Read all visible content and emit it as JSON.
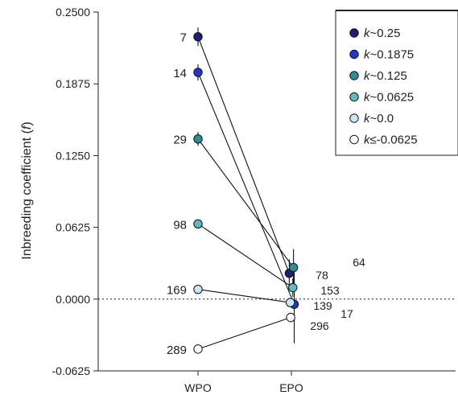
{
  "chart_data": {
    "type": "scatter",
    "ylabel_prefix": "Inbreeding coefficient (",
    "ylabel_var": "f",
    "ylabel_suffix": ")",
    "categories": [
      "WPO",
      "EPO"
    ],
    "ylim": [
      -0.0625,
      0.25
    ],
    "yticks": [
      "0.2500",
      "0.1875",
      "0.1250",
      "0.0625",
      "0.0000",
      "-0.0625"
    ],
    "reference_line": 0,
    "legend_position": "top-right",
    "series": [
      {
        "legend_var": "k",
        "legend_rel": "~",
        "legend_val": "0.25",
        "color": "#1a1f7a",
        "wpo": 0.2285,
        "wpo_err": 0.008,
        "wpo_n": "7",
        "epo": 0.0225,
        "epo_err": 0.012,
        "epo_n": "64",
        "epo_offset": -0.006
      },
      {
        "legend_var": "k",
        "legend_rel": "~",
        "legend_val": "0.1875",
        "color": "#1f36d6",
        "wpo": 0.1975,
        "wpo_err": 0.007,
        "wpo_n": "14",
        "epo": -0.0045,
        "epo_err": 0.034,
        "epo_n": "17",
        "epo_offset": 0.008
      },
      {
        "legend_var": "k",
        "legend_rel": "~",
        "legend_val": "0.125",
        "color": "#2a8f95",
        "wpo": 0.1395,
        "wpo_err": 0.006,
        "wpo_n": "29",
        "epo": 0.0275,
        "epo_err": 0.016,
        "epo_n": "78",
        "epo_offset": 0.006
      },
      {
        "legend_var": "k",
        "legend_rel": "~",
        "legend_val": "0.0625",
        "color": "#5cbcc2",
        "wpo": 0.0655,
        "wpo_err": 0.003,
        "wpo_n": "98",
        "epo": 0.01,
        "epo_err": 0.008,
        "epo_n": "153",
        "epo_offset": 0.004
      },
      {
        "legend_var": "k",
        "legend_rel": "~",
        "legend_val": "0.0",
        "color": "#c8e8f4",
        "wpo": 0.0085,
        "wpo_err": 0.002,
        "wpo_n": "169",
        "epo": -0.003,
        "epo_err": 0.004,
        "epo_n": "139",
        "epo_offset": -0.003
      },
      {
        "legend_var": "k",
        "legend_rel": "≤",
        "legend_val": "-0.0625",
        "color": "#ffffff",
        "wpo": -0.0435,
        "wpo_err": 0.002,
        "wpo_n": "289",
        "epo": -0.016,
        "epo_err": 0.004,
        "epo_n": "296",
        "epo_offset": -0.002
      }
    ]
  }
}
